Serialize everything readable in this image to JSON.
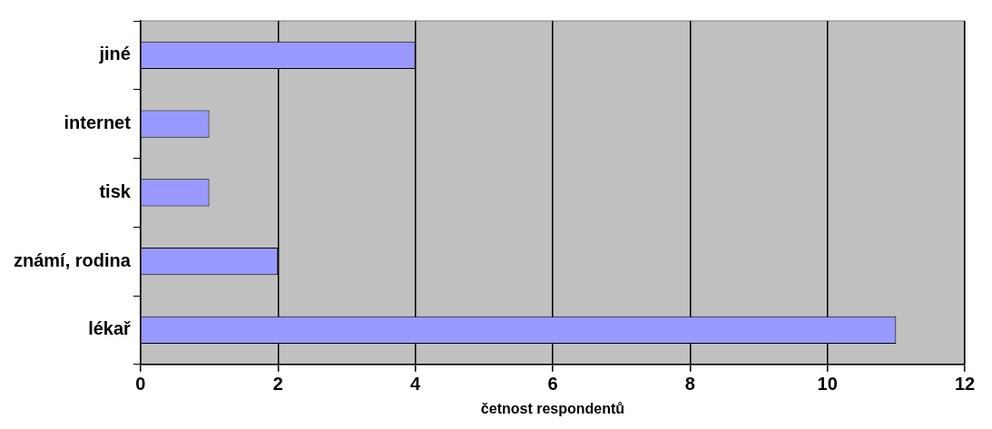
{
  "chart_data": {
    "type": "bar",
    "orientation": "horizontal",
    "categories": [
      "jiné",
      "internet",
      "tisk",
      "známí, rodina",
      "lékař"
    ],
    "values": [
      4,
      1,
      1,
      2,
      11
    ],
    "color": "#9999ff",
    "xlim": [
      0,
      12
    ],
    "xticks": [
      0,
      2,
      4,
      6,
      8,
      10,
      12
    ],
    "xlabel": "četnost respondentů",
    "grid": "x",
    "legend": false
  }
}
